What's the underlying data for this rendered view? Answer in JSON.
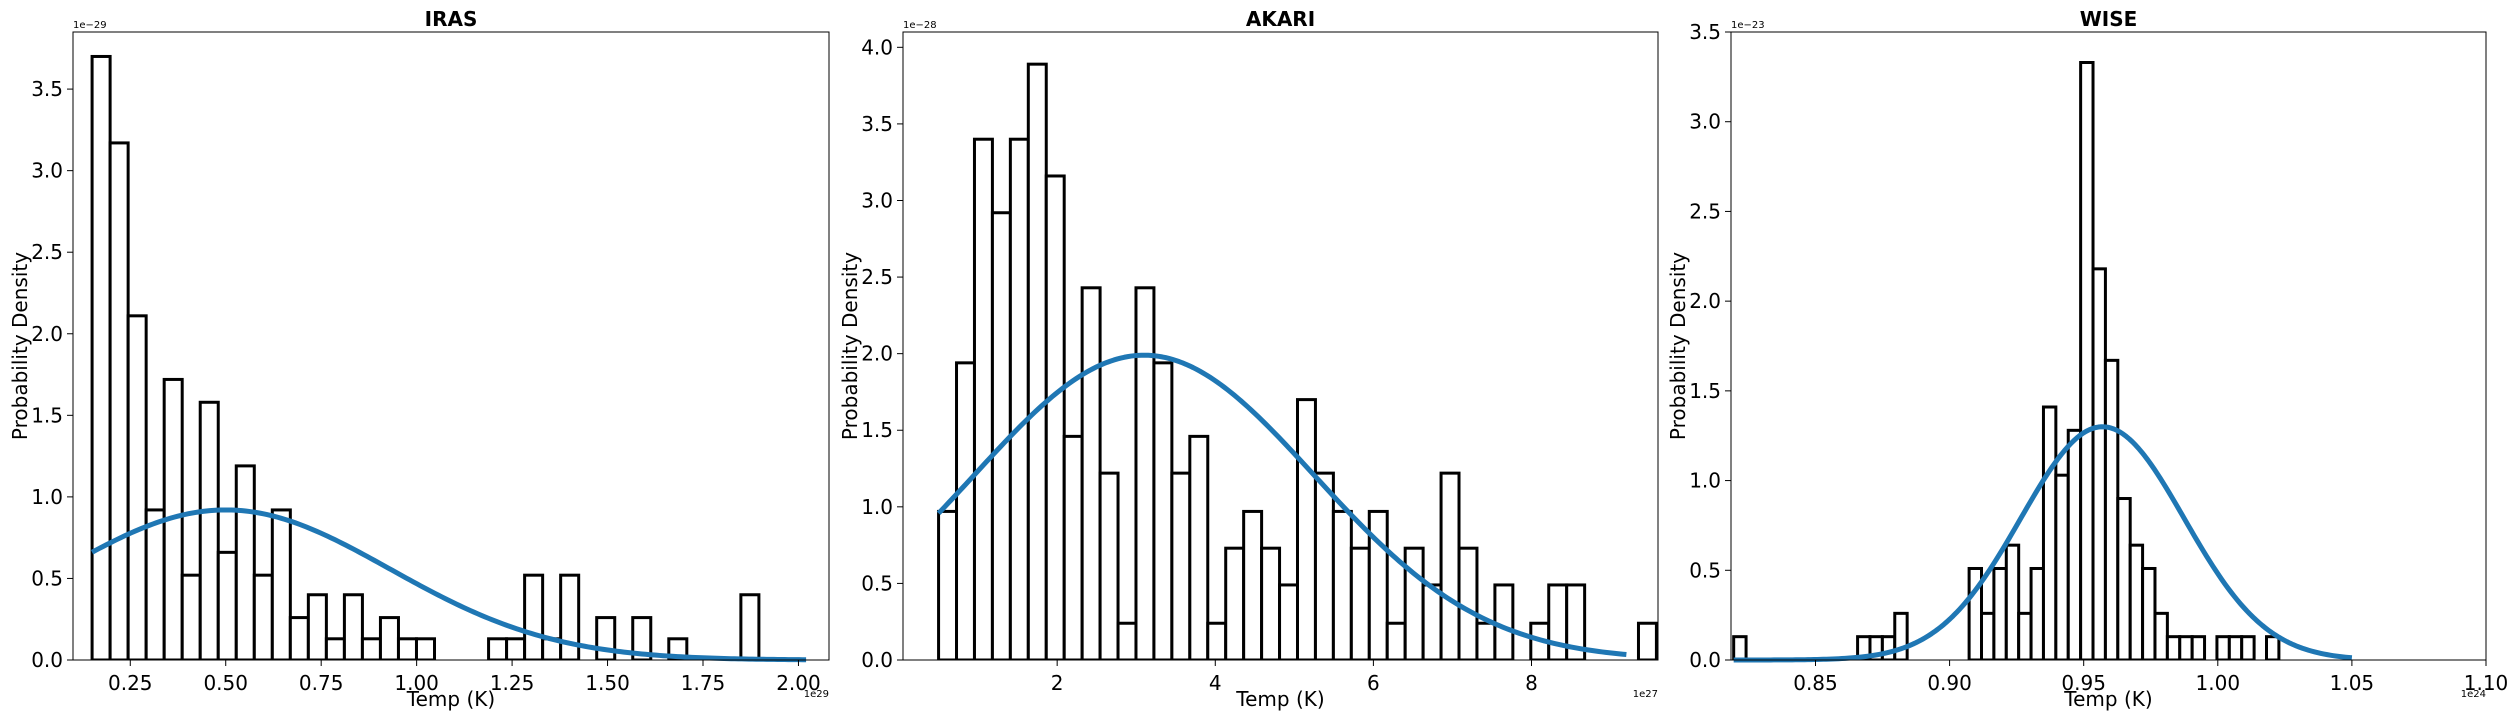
{
  "figure": {
    "line_color": "#1f77b4",
    "bar_edge_color": "#000000",
    "bar_fill_color": "#ffffff"
  },
  "chart_data": [
    {
      "type": "histogram",
      "title": "IRAS",
      "xlabel": "Temp (K)",
      "ylabel": "Probability Density",
      "x_offset_label": "1e29",
      "y_offset_label": "1e−29",
      "xlim": [
        0.1,
        2.08
      ],
      "ylim": [
        0,
        3.85
      ],
      "xticks": [
        0.25,
        0.5,
        0.75,
        1.0,
        1.25,
        1.5,
        1.75,
        2.0
      ],
      "xtick_labels": [
        "0.25",
        "0.50",
        "0.75",
        "1.00",
        "1.25",
        "1.50",
        "1.75",
        "2.00"
      ],
      "yticks": [
        0,
        0.5,
        1.0,
        1.5,
        2.0,
        2.5,
        3.0,
        3.5
      ],
      "ytick_labels": [
        "0.0",
        "0.5",
        "1.0",
        "1.5",
        "2.0",
        "2.5",
        "3.0",
        "3.5"
      ],
      "bins_start": 0.15,
      "bin_width": 0.0472,
      "bar_values": [
        3.7,
        3.17,
        2.11,
        0.92,
        1.72,
        0.52,
        1.58,
        0.66,
        1.19,
        0.52,
        0.92,
        0.26,
        0.4,
        0.13,
        0.4,
        0.13,
        0.26,
        0.13,
        0.13,
        0,
        0,
        0,
        0.13,
        0.13,
        0.52,
        0.13,
        0.52,
        0,
        0.26,
        0,
        0.26,
        0,
        0.13,
        0,
        0,
        0,
        0.4
      ],
      "fit_curve": {
        "type": "gaussian",
        "mean": 0.5,
        "sigma": 0.43,
        "peak": 0.92,
        "x_range": [
          0.15,
          2.02
        ]
      }
    },
    {
      "type": "histogram",
      "title": "AKARI",
      "xlabel": "Temp (K)",
      "ylabel": "Probability Density",
      "x_offset_label": "1e27",
      "y_offset_label": "1e−28",
      "xlim": [
        0.05,
        9.6
      ],
      "ylim": [
        0,
        4.1
      ],
      "xticks": [
        2,
        4,
        6,
        8
      ],
      "xtick_labels": [
        "2",
        "4",
        "6",
        "8"
      ],
      "yticks": [
        0,
        0.5,
        1.0,
        1.5,
        2.0,
        2.5,
        3.0,
        3.5,
        4.0
      ],
      "ytick_labels": [
        "0.0",
        "0.5",
        "1.0",
        "1.5",
        "2.0",
        "2.5",
        "3.0",
        "3.5",
        "4.0"
      ],
      "bins_start": 0.5,
      "bin_width": 0.227,
      "bar_values": [
        0.97,
        1.94,
        3.4,
        2.92,
        3.4,
        3.89,
        3.16,
        1.46,
        2.43,
        1.22,
        0.24,
        2.43,
        1.94,
        1.22,
        1.46,
        0.24,
        0.73,
        0.97,
        0.73,
        0.49,
        1.7,
        1.22,
        0.97,
        0.73,
        0.97,
        0.24,
        0.73,
        0.49,
        1.22,
        0.73,
        0.24,
        0.49,
        0,
        0.24,
        0.49,
        0.49,
        0,
        0,
        0,
        0.24
      ],
      "fit_curve": {
        "type": "gaussian",
        "mean": 3.1,
        "sigma": 2.15,
        "peak": 1.99,
        "x_range": [
          0.5,
          9.2
        ]
      }
    },
    {
      "type": "histogram",
      "title": "WISE",
      "xlabel": "Temp (K)",
      "ylabel": "Probability Density",
      "x_offset_label": "1e24",
      "y_offset_label": "1e−23",
      "xlim": [
        0.8185,
        1.1
      ],
      "ylim": [
        0,
        3.5
      ],
      "xticks": [
        0.85,
        0.9,
        0.95,
        1.0,
        1.05,
        1.1
      ],
      "xtick_labels": [
        "0.85",
        "0.90",
        "0.95",
        "1.00",
        "1.05",
        "1.10"
      ],
      "yticks": [
        0,
        0.5,
        1.0,
        1.5,
        2.0,
        2.5,
        3.0,
        3.5
      ],
      "ytick_labels": [
        "0.0",
        "0.5",
        "1.0",
        "1.5",
        "2.0",
        "2.5",
        "3.0",
        "3.5"
      ],
      "bins_start": 0.8195,
      "bin_width": 0.00462,
      "bar_values": [
        0.13,
        0,
        0,
        0,
        0,
        0,
        0,
        0,
        0,
        0,
        0.13,
        0.13,
        0.13,
        0.26,
        0,
        0,
        0,
        0,
        0,
        0.51,
        0.26,
        0.51,
        0.64,
        0.26,
        0.51,
        1.41,
        1.03,
        1.28,
        3.33,
        2.18,
        1.67,
        0.9,
        0.64,
        0.51,
        0.26,
        0.13,
        0.13,
        0.13,
        0,
        0.13,
        0.13,
        0.13,
        0,
        0.13
      ],
      "fit_curve": {
        "type": "gaussian",
        "mean": 0.957,
        "sigma": 0.0305,
        "peak": 1.3,
        "x_range": [
          0.8195,
          1.05
        ]
      }
    }
  ]
}
